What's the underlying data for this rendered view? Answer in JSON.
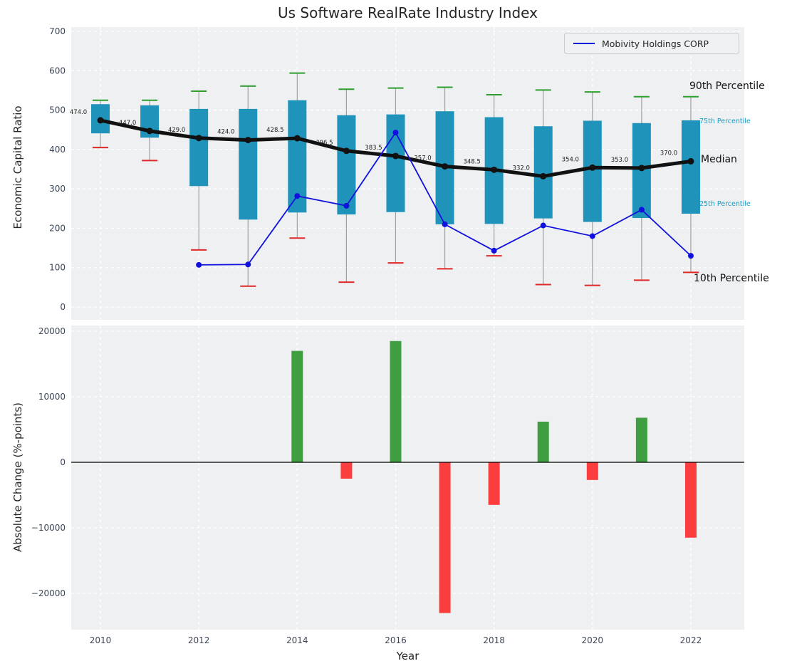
{
  "figure": {
    "title": "Us Software RealRate Industry Index",
    "xlabel": "Year",
    "background": "#ffffff",
    "plot_background": "#eef0f2"
  },
  "annotations": {
    "p90": "90th Percentile",
    "p75": "75th Percentile",
    "median": "Median",
    "p25": "25th Percentile",
    "p10": "10th Percentile"
  },
  "chart_data": [
    {
      "type": "boxplot+line",
      "title": "Us Software RealRate Industry Index",
      "ylabel": "Economic Capital Ratio",
      "ylim": [
        0,
        700
      ],
      "yticks": [
        0,
        100,
        200,
        300,
        400,
        500,
        600,
        700
      ],
      "xticks": [
        2010,
        2012,
        2014,
        2016,
        2018,
        2020,
        2022
      ],
      "categories": [
        2010,
        2011,
        2012,
        2013,
        2014,
        2015,
        2016,
        2017,
        2018,
        2019,
        2020,
        2021,
        2022
      ],
      "grid": "white dashed",
      "legend_position": "upper right",
      "box_color": "#2093bb",
      "whisker_color": "#a0a0a0",
      "cap_top_color": "#2e9e2e",
      "cap_bottom_color": "#e02828",
      "median_line_color": "#111111",
      "percentiles": {
        "p90": [
          525,
          525,
          548,
          561,
          594,
          553,
          556,
          558,
          539,
          551,
          546,
          534,
          534
        ],
        "p75": [
          515,
          512,
          503,
          503,
          525,
          487,
          489,
          497,
          482,
          459,
          473,
          467,
          474
        ],
        "median": [
          474.0,
          447.0,
          429.0,
          424.0,
          428.5,
          396.5,
          383.5,
          357.0,
          348.5,
          332.0,
          354.0,
          353.0,
          370.0
        ],
        "p25": [
          441,
          430,
          307,
          222,
          240,
          235,
          241,
          210,
          211,
          225,
          216,
          226,
          237
        ],
        "p10": [
          405,
          372,
          145,
          53,
          175,
          63,
          112,
          97,
          130,
          57,
          55,
          68,
          88
        ]
      },
      "median_labels": [
        "474.0",
        "447.0",
        "429.0",
        "424.0",
        "428.5",
        "396.5",
        "383.5",
        "357.0",
        "348.5",
        "332.0",
        "354.0",
        "353.0",
        "370.0"
      ],
      "series": [
        {
          "name": "Mobivity Holdings CORP",
          "color": "#1111dd",
          "x": [
            2012,
            2013,
            2014,
            2015,
            2016,
            2017,
            2018,
            2019,
            2020,
            2021,
            2022
          ],
          "values": [
            107,
            108,
            282,
            257,
            443,
            210,
            143,
            207,
            180,
            247,
            130
          ]
        }
      ]
    },
    {
      "type": "bar",
      "ylabel": "Absolute Change (%-points)",
      "xlabel": "Year",
      "ylim": [
        -25500,
        21000
      ],
      "yticks": [
        -20000,
        -10000,
        0,
        10000,
        20000
      ],
      "ytick_labels": [
        "−20000",
        "−10000",
        "0",
        "10000",
        "20000"
      ],
      "xticks": [
        2010,
        2012,
        2014,
        2016,
        2018,
        2020,
        2022
      ],
      "categories": [
        2010,
        2011,
        2012,
        2013,
        2014,
        2015,
        2016,
        2017,
        2018,
        2019,
        2020,
        2021,
        2022
      ],
      "values": [
        null,
        null,
        null,
        null,
        17000,
        -2500,
        18500,
        -23000,
        -6500,
        6200,
        -2700,
        6800,
        -11500
      ],
      "positive_color": "#3f9e3f",
      "negative_color": "#fb3d3d",
      "zero_line_color": "#000000"
    }
  ]
}
